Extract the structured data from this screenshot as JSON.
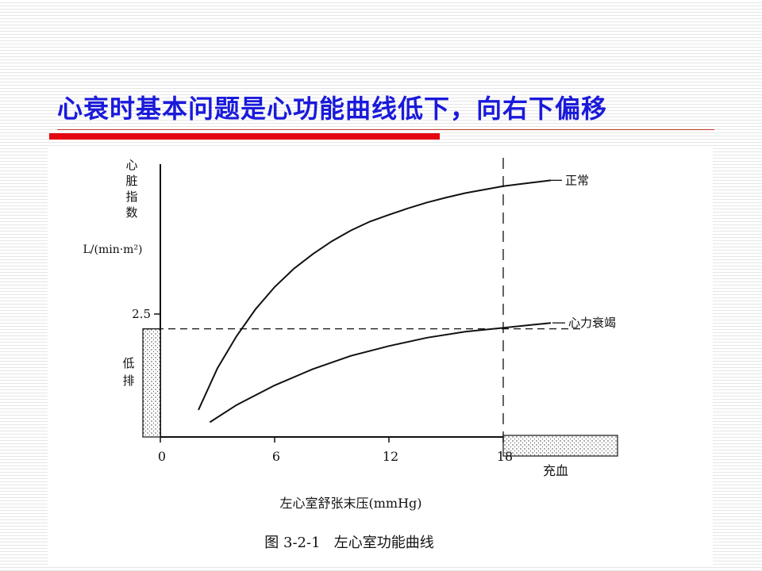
{
  "slide": {
    "title": "心衰时基本问题是心功能曲线低下，向右下偏移",
    "title_color": "#1a1adb",
    "accent_color": "#e30613"
  },
  "chart_data": {
    "type": "line",
    "caption": "图 3-2-1   左心室功能曲线",
    "xlabel": "左心室舒张末压(mmHg)",
    "ylabel_lines": [
      "心",
      "脏",
      "指",
      "数"
    ],
    "ylabel_unit": "L/(min·m²)",
    "xlim": [
      0,
      20.5
    ],
    "ylim": [
      0,
      5.5
    ],
    "x_ticks": [
      {
        "value": 0,
        "label": "0"
      },
      {
        "value": 6,
        "label": "6"
      },
      {
        "value": 12,
        "label": "12"
      },
      {
        "value": 18,
        "label": "18"
      }
    ],
    "y_ticks": [
      {
        "value": 2.5,
        "label": "2.5"
      }
    ],
    "threshold_y": 2.2,
    "threshold_x": 18,
    "region_low_output": {
      "label": "低排",
      "y_range": [
        0,
        2.2
      ]
    },
    "region_congestion": {
      "label": "充血",
      "x_range": [
        18,
        24
      ]
    },
    "series": [
      {
        "name": "正常",
        "points": [
          [
            2.0,
            0.55
          ],
          [
            3,
            1.4
          ],
          [
            4,
            2.05
          ],
          [
            5,
            2.6
          ],
          [
            6,
            3.05
          ],
          [
            7,
            3.42
          ],
          [
            8,
            3.72
          ],
          [
            9,
            3.98
          ],
          [
            10,
            4.2
          ],
          [
            11,
            4.38
          ],
          [
            12,
            4.52
          ],
          [
            13,
            4.65
          ],
          [
            14,
            4.77
          ],
          [
            15,
            4.87
          ],
          [
            16,
            4.96
          ],
          [
            17,
            5.03
          ],
          [
            18,
            5.1
          ],
          [
            19,
            5.15
          ],
          [
            20.5,
            5.22
          ]
        ]
      },
      {
        "name": "心力衰竭",
        "points": [
          [
            2.6,
            0.3
          ],
          [
            4,
            0.65
          ],
          [
            6,
            1.05
          ],
          [
            8,
            1.38
          ],
          [
            10,
            1.65
          ],
          [
            12,
            1.85
          ],
          [
            14,
            2.02
          ],
          [
            16,
            2.14
          ],
          [
            18,
            2.22
          ],
          [
            19.5,
            2.28
          ],
          [
            20.5,
            2.32
          ]
        ]
      }
    ]
  }
}
